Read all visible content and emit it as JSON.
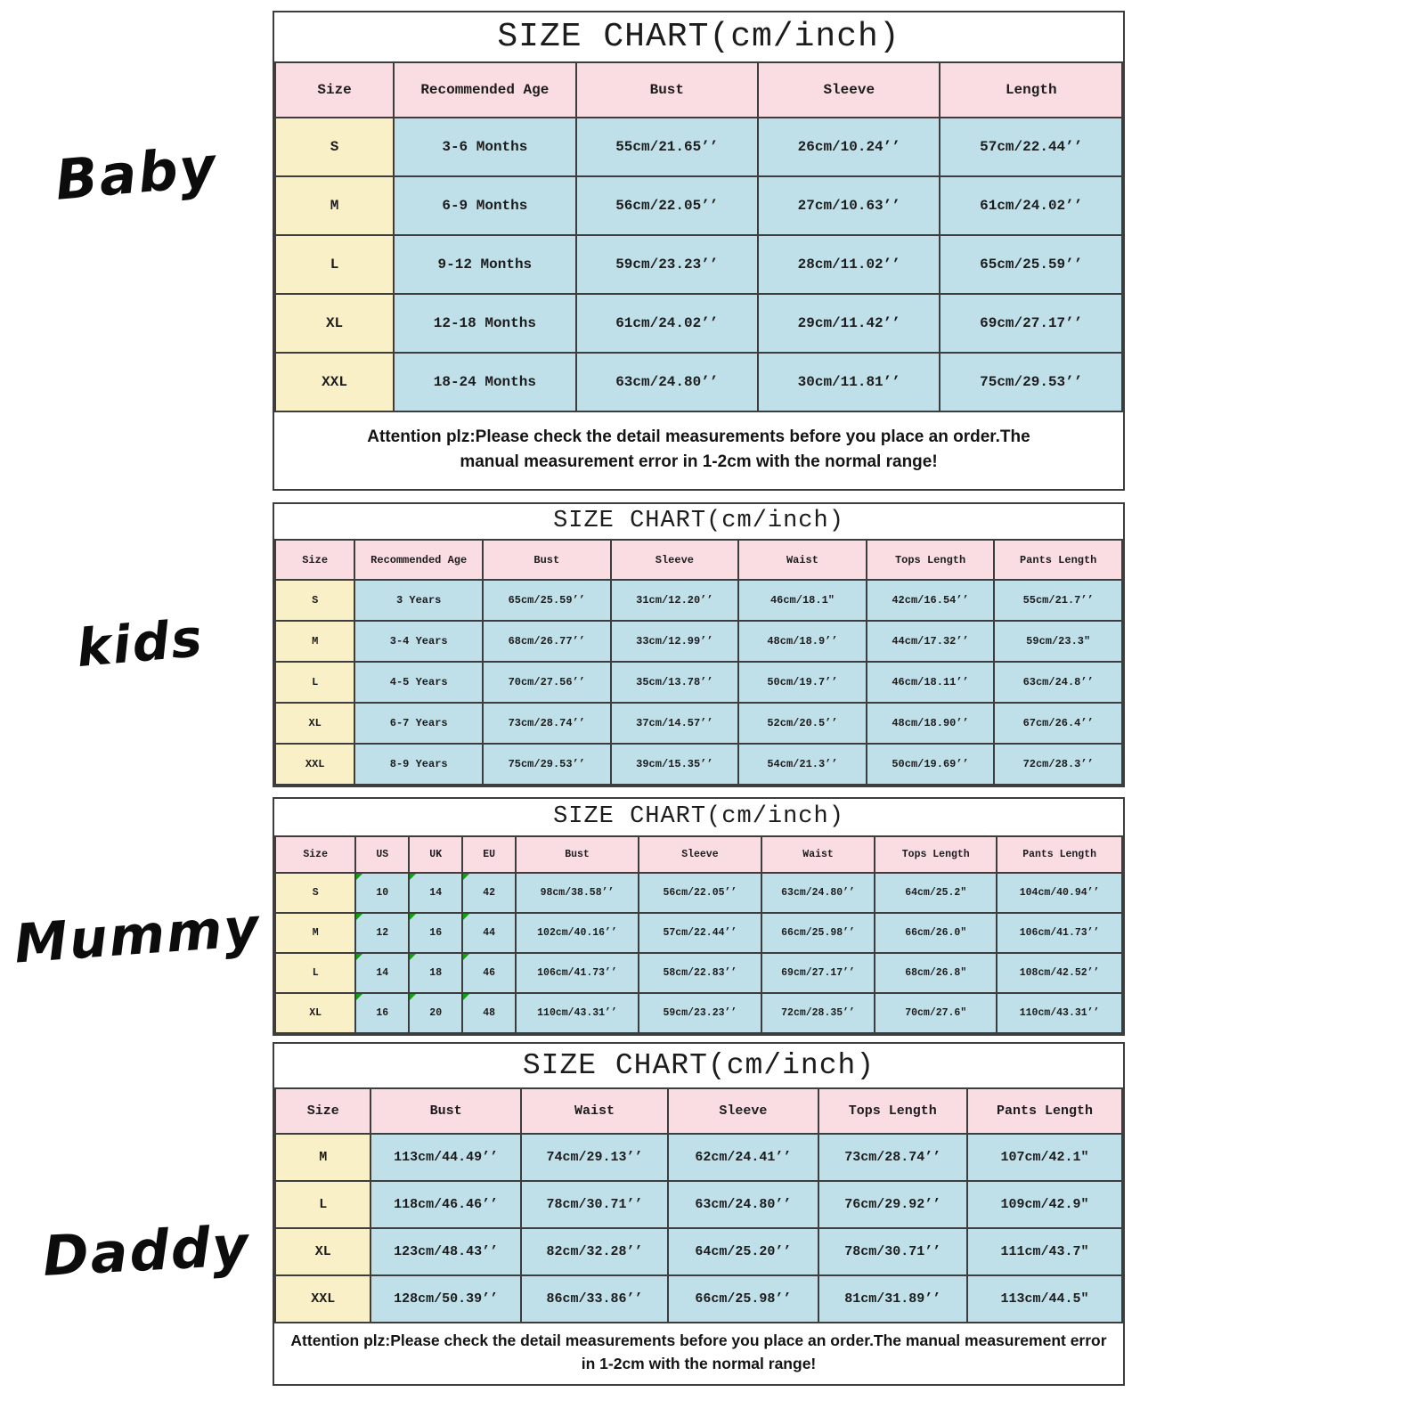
{
  "labels": [
    {
      "text": "Baby"
    },
    {
      "text": "kids"
    },
    {
      "text": "Mummy"
    },
    {
      "text": "Daddy"
    }
  ],
  "colors": {
    "header_pink": "#fadce3",
    "size_yellow": "#faf0c8",
    "cell_blue": "#bfdfe9",
    "border_gray": "#3d3d3d",
    "marker_green": "#14a014"
  },
  "tables": [
    {
      "title": "SIZE CHART(cm/inch)",
      "columns": [
        "Size",
        "Recommended Age",
        "Bust",
        "Sleeve",
        "Length"
      ],
      "rows": [
        [
          "S",
          "3-6 Months",
          "55cm/21.65’’",
          "26cm/10.24’’",
          "57cm/22.44’’"
        ],
        [
          "M",
          "6-9 Months",
          "56cm/22.05’’",
          "27cm/10.63’’",
          "61cm/24.02’’"
        ],
        [
          "L",
          "9-12 Months",
          "59cm/23.23’’",
          "28cm/11.02’’",
          "65cm/25.59’’"
        ],
        [
          "XL",
          "12-18 Months",
          "61cm/24.02’’",
          "29cm/11.42’’",
          "69cm/27.17’’"
        ],
        [
          "XXL",
          "18-24 Months",
          "63cm/24.80’’",
          "30cm/11.81’’",
          "75cm/29.53’’"
        ]
      ],
      "note": "Attention plz:Please check the detail measurements before you place an order.The manual measurement error in 1-2cm with the normal range!"
    },
    {
      "title": "SIZE CHART(cm/inch)",
      "columns": [
        "Size",
        "Recommended Age",
        "Bust",
        "Sleeve",
        "Waist",
        "Tops Length",
        "Pants Length"
      ],
      "rows": [
        [
          "S",
          "3 Years",
          "65cm/25.59’’",
          "31cm/12.20’’",
          "46cm/18.1″",
          "42cm/16.54’’",
          "55cm/21.7’’"
        ],
        [
          "M",
          "3-4 Years",
          "68cm/26.77’’",
          "33cm/12.99’’",
          "48cm/18.9’’",
          "44cm/17.32’’",
          "59cm/23.3″"
        ],
        [
          "L",
          "4-5 Years",
          "70cm/27.56’’",
          "35cm/13.78’’",
          "50cm/19.7’’",
          "46cm/18.11’’",
          "63cm/24.8’’"
        ],
        [
          "XL",
          "6-7 Years",
          "73cm/28.74’’",
          "37cm/14.57’’",
          "52cm/20.5’’",
          "48cm/18.90’’",
          "67cm/26.4’’"
        ],
        [
          "XXL",
          "8-9 Years",
          "75cm/29.53’’",
          "39cm/15.35’’",
          "54cm/21.3’’",
          "50cm/19.69’’",
          "72cm/28.3’’"
        ]
      ],
      "note": ""
    },
    {
      "title": "SIZE CHART(cm/inch)",
      "columns": [
        "Size",
        "US",
        "UK",
        "EU",
        "Bust",
        "Sleeve",
        "Waist",
        "Tops Length",
        "Pants Length"
      ],
      "marked_cols": "1,2,3",
      "rows": [
        [
          "S",
          "10",
          "14",
          "42",
          "98cm/38.58’’",
          "56cm/22.05’’",
          "63cm/24.80’’",
          "64cm/25.2″",
          "104cm/40.94’’"
        ],
        [
          "M",
          "12",
          "16",
          "44",
          "102cm/40.16’’",
          "57cm/22.44’’",
          "66cm/25.98’’",
          "66cm/26.0″",
          "106cm/41.73’’"
        ],
        [
          "L",
          "14",
          "18",
          "46",
          "106cm/41.73’’",
          "58cm/22.83’’",
          "69cm/27.17’’",
          "68cm/26.8″",
          "108cm/42.52’’"
        ],
        [
          "XL",
          "16",
          "20",
          "48",
          "110cm/43.31’’",
          "59cm/23.23’’",
          "72cm/28.35’’",
          "70cm/27.6″",
          "110cm/43.31’’"
        ]
      ],
      "note": ""
    },
    {
      "title": "SIZE CHART(cm/inch)",
      "columns": [
        "Size",
        "Bust",
        "Waist",
        "Sleeve",
        "Tops Length",
        "Pants Length"
      ],
      "rows": [
        [
          "M",
          "113cm/44.49’’",
          "74cm/29.13’’",
          "62cm/24.41’’",
          "73cm/28.74’’",
          "107cm/42.1″"
        ],
        [
          "L",
          "118cm/46.46’’",
          "78cm/30.71’’",
          "63cm/24.80’’",
          "76cm/29.92’’",
          "109cm/42.9″"
        ],
        [
          "XL",
          "123cm/48.43’’",
          "82cm/32.28’’",
          "64cm/25.20’’",
          "78cm/30.71’’",
          "111cm/43.7″"
        ],
        [
          "XXL",
          "128cm/50.39’’",
          "86cm/33.86’’",
          "66cm/25.98’’",
          "81cm/31.89’’",
          "113cm/44.5″"
        ]
      ],
      "note": "Attention plz:Please check the detail measurements before you place an order.The manual measurement error in 1-2cm with the normal range!"
    }
  ]
}
